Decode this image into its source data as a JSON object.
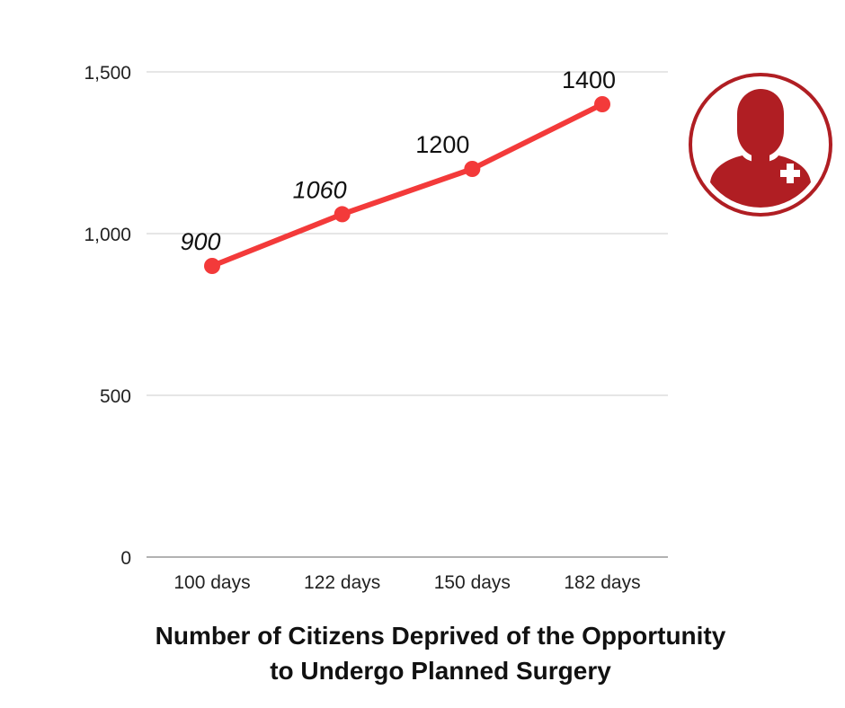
{
  "title": {
    "line1": "Number of Citizens Deprived of the Opportunity",
    "line2": "to Undergo Planned Surgery"
  },
  "colors": {
    "series": "#f33a3a",
    "grid": "#cccccc",
    "axis": "#999999",
    "badge": "#b01e23"
  },
  "icons": {
    "badge": "doctor-avatar-icon",
    "cross": "medical-cross-icon"
  },
  "chart_data": {
    "type": "line",
    "categories": [
      "100 days",
      "122 days",
      "150 days",
      "182 days"
    ],
    "series": [
      {
        "values": [
          900,
          1060,
          1200,
          1400
        ]
      }
    ],
    "data_labels": [
      "900",
      "1060",
      "1200",
      "1400"
    ],
    "y_ticks": [
      "0",
      "500",
      "1,000",
      "1,500"
    ],
    "y_tick_values": [
      0,
      500,
      1000,
      1500
    ],
    "ylim": [
      0,
      1500
    ],
    "grid": true,
    "xlabel": "",
    "ylabel": ""
  }
}
